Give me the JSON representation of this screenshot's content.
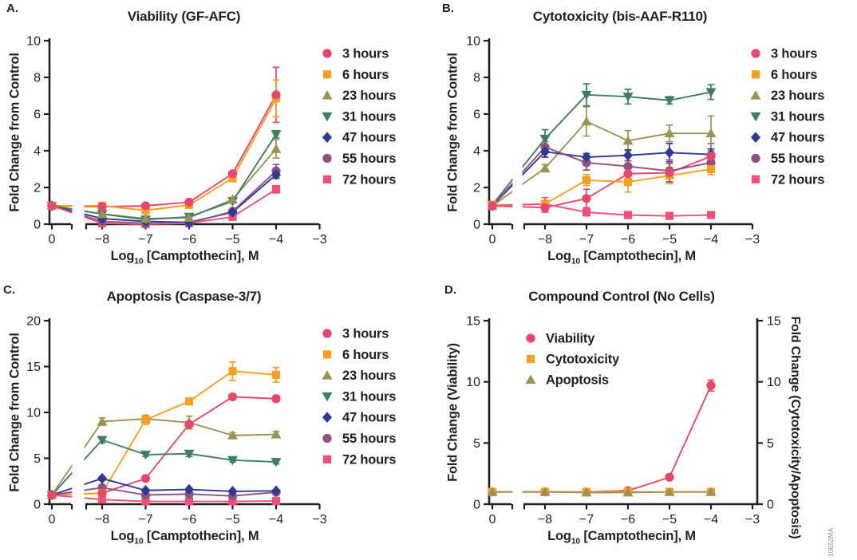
{
  "figure_number": "10652MA",
  "xaxis": {
    "label_prefix": "Log",
    "label_sub": "10",
    "label_rest": " [Camptothecin], M",
    "tick_labels": [
      "0",
      "−8",
      "−7",
      "−6",
      "−5",
      "−4",
      "−3"
    ]
  },
  "chart_data": [
    {
      "type": "line",
      "letter": "A.",
      "title": "Viability (GF-AFC)",
      "ylabel": "Fold Change from Control",
      "ylim": [
        0,
        10
      ],
      "yticks": [
        0,
        2,
        4,
        6,
        8,
        10
      ],
      "x": [
        0,
        -8,
        -7,
        -6,
        -5,
        -4
      ],
      "legend_position": "right",
      "series": [
        {
          "name": "3 hours",
          "marker": "circle",
          "color": "#E8476C",
          "values": [
            1.0,
            0.95,
            1.0,
            1.2,
            2.75,
            7.05
          ],
          "errors": [
            0,
            0,
            0,
            0,
            0.15,
            1.5
          ]
        },
        {
          "name": "6 hours",
          "marker": "square",
          "color": "#F6A01F",
          "values": [
            1.0,
            1.0,
            0.75,
            1.05,
            2.5,
            6.85
          ],
          "errors": [
            0,
            0,
            0,
            0,
            0.1,
            1.0
          ]
        },
        {
          "name": "23 hours",
          "marker": "triangle-up",
          "color": "#9A9355",
          "values": [
            1.0,
            0.55,
            0.3,
            0.35,
            1.35,
            4.1
          ],
          "errors": [
            0,
            0,
            0,
            0,
            0.1,
            0.5
          ]
        },
        {
          "name": "31 hours",
          "marker": "triangle-down",
          "color": "#3E7D60",
          "values": [
            1.0,
            0.55,
            0.25,
            0.4,
            1.25,
            4.9
          ],
          "errors": [
            0,
            0,
            0,
            0,
            0.1,
            0.2
          ]
        },
        {
          "name": "47 hours",
          "marker": "diamond",
          "color": "#2D3A94",
          "values": [
            1.0,
            0.3,
            0.15,
            0.1,
            0.65,
            2.7
          ],
          "errors": [
            0,
            0,
            0,
            0,
            0,
            0.2
          ]
        },
        {
          "name": "55 hours",
          "marker": "circle",
          "color": "#8E5181",
          "values": [
            1.0,
            0.15,
            0.05,
            0.05,
            0.7,
            2.9
          ],
          "errors": [
            0,
            0,
            0,
            0,
            0,
            0.35
          ]
        },
        {
          "name": "72 hours",
          "marker": "square",
          "color": "#F0517B",
          "values": [
            1.0,
            0.05,
            0.0,
            0.05,
            0.4,
            1.9
          ],
          "errors": [
            0,
            0,
            0,
            0,
            0,
            0.2
          ]
        }
      ]
    },
    {
      "type": "line",
      "letter": "B.",
      "title": "Cytotoxicity (bis-AAF-R110)",
      "ylabel": "Fold Change from Control",
      "ylim": [
        0,
        10
      ],
      "yticks": [
        0,
        2,
        4,
        6,
        8,
        10
      ],
      "x": [
        0,
        -8,
        -7,
        -6,
        -5,
        -4
      ],
      "legend_position": "right",
      "series": [
        {
          "name": "3 hours",
          "marker": "circle",
          "color": "#E8476C",
          "values": [
            1.0,
            0.9,
            1.4,
            2.75,
            2.8,
            3.7
          ],
          "errors": [
            0.2,
            0.25,
            0.5,
            0.3,
            0.5,
            0.7
          ]
        },
        {
          "name": "6 hours",
          "marker": "square",
          "color": "#F6A01F",
          "values": [
            1.05,
            1.1,
            2.4,
            2.3,
            2.65,
            3.0
          ],
          "errors": [
            0.15,
            0.2,
            0.3,
            0.55,
            0.45,
            0.3
          ]
        },
        {
          "name": "23 hours",
          "marker": "triangle-up",
          "color": "#9A9355",
          "values": [
            1.0,
            3.05,
            5.6,
            4.55,
            4.95,
            4.95
          ],
          "errors": [
            0.15,
            0.2,
            0.8,
            0.55,
            0.45,
            0.95
          ]
        },
        {
          "name": "31 hours",
          "marker": "triangle-down",
          "color": "#3E7D60",
          "values": [
            1.05,
            4.65,
            7.05,
            6.95,
            6.75,
            7.2
          ],
          "errors": [
            0.1,
            0.5,
            0.6,
            0.4,
            0.2,
            0.4
          ]
        },
        {
          "name": "47 hours",
          "marker": "diamond",
          "color": "#2D3A94",
          "values": [
            1.0,
            3.95,
            3.65,
            3.75,
            3.9,
            3.8
          ],
          "errors": [
            0.1,
            0.3,
            0.2,
            0.3,
            0.5,
            0.3
          ]
        },
        {
          "name": "55 hours",
          "marker": "circle",
          "color": "#8E5181",
          "values": [
            1.0,
            4.2,
            3.35,
            3.15,
            2.9,
            3.35
          ],
          "errors": [
            0.1,
            0.3,
            0.4,
            0.3,
            0.6,
            0.3
          ]
        },
        {
          "name": "72 hours",
          "marker": "square",
          "color": "#F0517B",
          "values": [
            1.0,
            1.1,
            0.65,
            0.5,
            0.45,
            0.5
          ],
          "errors": [
            0.15,
            0.35,
            0.2,
            0.1,
            0.1,
            0.1
          ]
        }
      ]
    },
    {
      "type": "line",
      "letter": "C.",
      "title": "Apoptosis (Caspase-3/7)",
      "ylabel": "Fold Change from Control",
      "ylim": [
        0,
        20
      ],
      "yticks": [
        0,
        5,
        10,
        15,
        20
      ],
      "x": [
        0,
        -8,
        -7,
        -6,
        -5,
        -4
      ],
      "legend_position": "right",
      "series": [
        {
          "name": "3 hours",
          "marker": "circle",
          "color": "#E8476C",
          "values": [
            1.0,
            1.2,
            2.8,
            8.7,
            11.7,
            11.5
          ],
          "errors": [
            0,
            0,
            0,
            0.3,
            0.3,
            0.3
          ]
        },
        {
          "name": "6 hours",
          "marker": "square",
          "color": "#F6A01F",
          "values": [
            1.0,
            1.2,
            9.2,
            11.2,
            14.5,
            14.1
          ],
          "errors": [
            0,
            0,
            0.5,
            0.3,
            1.0,
            0.8
          ]
        },
        {
          "name": "23 hours",
          "marker": "triangle-up",
          "color": "#9A9355",
          "values": [
            1.0,
            9.0,
            9.3,
            8.9,
            7.5,
            7.6
          ],
          "errors": [
            0,
            0.4,
            0.3,
            0.7,
            0.3,
            0.3
          ]
        },
        {
          "name": "31 hours",
          "marker": "triangle-down",
          "color": "#3E7D60",
          "values": [
            1.0,
            7.0,
            5.4,
            5.5,
            4.8,
            4.6
          ],
          "errors": [
            0,
            0.3,
            0.2,
            0.3,
            0.2,
            0.2
          ]
        },
        {
          "name": "47 hours",
          "marker": "diamond",
          "color": "#2D3A94",
          "values": [
            1.0,
            2.8,
            1.5,
            1.6,
            1.4,
            1.45
          ],
          "errors": [
            0,
            0.2,
            0.1,
            0.1,
            0.1,
            0.1
          ]
        },
        {
          "name": "55 hours",
          "marker": "circle",
          "color": "#8E5181",
          "values": [
            1.0,
            1.8,
            1.0,
            1.1,
            0.9,
            1.3
          ],
          "errors": [
            0,
            0.2,
            0.1,
            0.1,
            0.1,
            0.1
          ]
        },
        {
          "name": "72 hours",
          "marker": "square",
          "color": "#F0517B",
          "values": [
            1.0,
            0.5,
            0.3,
            0.3,
            0.3,
            0.35
          ],
          "errors": [
            0,
            0.1,
            0.1,
            0.1,
            0.1,
            0.1
          ]
        }
      ]
    },
    {
      "type": "line",
      "letter": "D.",
      "title": "Compound Control (No Cells)",
      "ylabel": "Fold Change (Viability)",
      "ylabel_right": "Fold Change (Cytotoxicity/Apoptosis)",
      "right_axis": true,
      "ylim": [
        0,
        15
      ],
      "yticks": [
        0,
        5,
        10,
        15
      ],
      "x": [
        0,
        -8,
        -7,
        -6,
        -5,
        -4
      ],
      "legend_position": "inside-top-left",
      "series": [
        {
          "name": "Viability",
          "marker": "circle",
          "color": "#E8476C",
          "values": [
            1.0,
            1.0,
            1.0,
            1.1,
            2.2,
            9.7
          ],
          "errors": [
            0,
            0,
            0,
            0,
            0.1,
            0.45
          ]
        },
        {
          "name": "Cytotoxicity",
          "marker": "square",
          "color": "#F6A01F",
          "values": [
            1.0,
            1.0,
            1.0,
            1.0,
            1.0,
            1.0
          ],
          "errors": [
            0,
            0,
            0,
            0,
            0,
            0
          ]
        },
        {
          "name": "Apoptosis",
          "marker": "triangle-up",
          "color": "#9A9355",
          "values": [
            1.0,
            1.0,
            0.95,
            0.95,
            1.0,
            1.0
          ],
          "errors": [
            0,
            0,
            0,
            0,
            0,
            0
          ]
        }
      ]
    }
  ]
}
